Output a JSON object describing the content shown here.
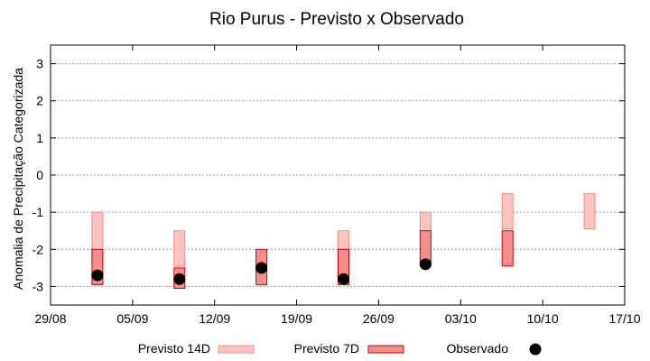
{
  "chart_data": {
    "type": "bar",
    "title": "Rio Purus - Previsto x Observado",
    "xlabel": "",
    "ylabel": "Anomalia de Precipitação Categorizada",
    "x_ticks": [
      "29/08",
      "05/09",
      "12/09",
      "19/09",
      "26/09",
      "03/10",
      "10/10",
      "17/10"
    ],
    "xlim": [
      "2024-08-29",
      "2024-10-17"
    ],
    "ylim": [
      -3.5,
      3.5
    ],
    "y_ticks": [
      3,
      2,
      1,
      0,
      -1,
      -2,
      -3
    ],
    "grid": true,
    "legend_position": "bottom",
    "series": [
      {
        "name": "Previsto 14D",
        "color_fill": "#fcc4be",
        "color_edge": "#f08c86",
        "ranges": [
          {
            "x": "2024-09-02",
            "low": -2.95,
            "high": -1.0
          },
          {
            "x": "2024-09-09",
            "low": -2.45,
            "high": -1.5
          },
          {
            "x": "2024-09-23",
            "low": -2.0,
            "high": -1.5
          },
          {
            "x": "2024-09-30",
            "low": -1.5,
            "high": -1.0
          },
          {
            "x": "2024-10-07",
            "low": -1.45,
            "high": -0.5
          },
          {
            "x": "2024-10-14",
            "low": -1.45,
            "high": -0.5
          }
        ]
      },
      {
        "name": "Previsto 7D",
        "color_fill": "#f88e8a",
        "color_edge": "#c8000a",
        "ranges": [
          {
            "x": "2024-09-02",
            "low": -2.95,
            "high": -2.0
          },
          {
            "x": "2024-09-09",
            "low": -3.05,
            "high": -2.5
          },
          {
            "x": "2024-09-16",
            "low": -2.95,
            "high": -2.0
          },
          {
            "x": "2024-09-23",
            "low": -2.95,
            "high": -2.0
          },
          {
            "x": "2024-09-30",
            "low": -2.45,
            "high": -1.5
          },
          {
            "x": "2024-10-07",
            "low": -2.45,
            "high": -1.5
          }
        ]
      },
      {
        "name": "Observado",
        "color": "#000000",
        "points": [
          {
            "x": "2024-09-02",
            "y": -2.7
          },
          {
            "x": "2024-09-09",
            "y": -2.8
          },
          {
            "x": "2024-09-16",
            "y": -2.5
          },
          {
            "x": "2024-09-23",
            "y": -2.8
          },
          {
            "x": "2024-09-30",
            "y": -2.4
          }
        ]
      }
    ]
  }
}
